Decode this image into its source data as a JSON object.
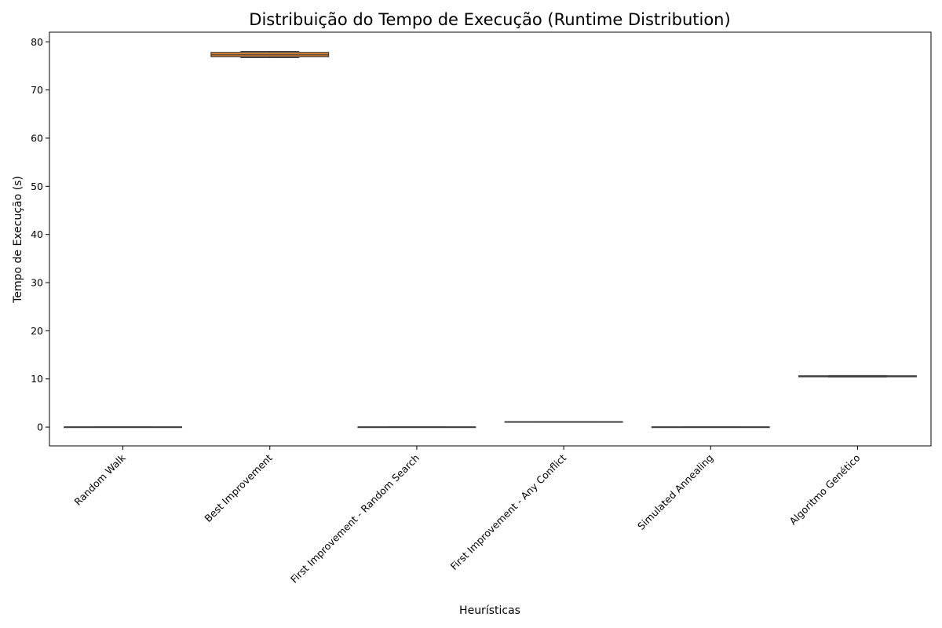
{
  "chart_data": {
    "type": "box",
    "title": "Distribuição do Tempo de Execução (Runtime Distribution)",
    "xlabel": "Heurísticas",
    "ylabel": "Tempo de Execução (s)",
    "ylim": [
      -3.9,
      82.0
    ],
    "yticks": [
      0,
      10,
      20,
      30,
      40,
      50,
      60,
      70,
      80
    ],
    "grid": false,
    "legend": "none",
    "categories": [
      "Random Walk",
      "Best Improvement",
      "First Improvement - Random Search",
      "First Improvement - Any Conflict",
      "Simulated Annealing",
      "Algoritmo Genético"
    ],
    "boxes": [
      {
        "min": 0.01,
        "q1": 0.02,
        "median": 0.03,
        "q3": 0.04,
        "max": 0.05,
        "color": "#3274a1"
      },
      {
        "min": 76.7,
        "q1": 76.9,
        "median": 77.3,
        "q3": 77.8,
        "max": 78.0,
        "color": "#e1812c"
      },
      {
        "min": 0.01,
        "q1": 0.02,
        "median": 0.03,
        "q3": 0.04,
        "max": 0.05,
        "color": "#3a923a"
      },
      {
        "min": 1.05,
        "q1": 1.08,
        "median": 1.1,
        "q3": 1.13,
        "max": 1.15,
        "color": "#c03d3e"
      },
      {
        "min": 0.01,
        "q1": 0.02,
        "median": 0.03,
        "q3": 0.04,
        "max": 0.05,
        "color": "#9372b2"
      },
      {
        "min": 10.4,
        "q1": 10.45,
        "median": 10.5,
        "q3": 10.65,
        "max": 10.7,
        "color": "#845b53"
      }
    ]
  }
}
